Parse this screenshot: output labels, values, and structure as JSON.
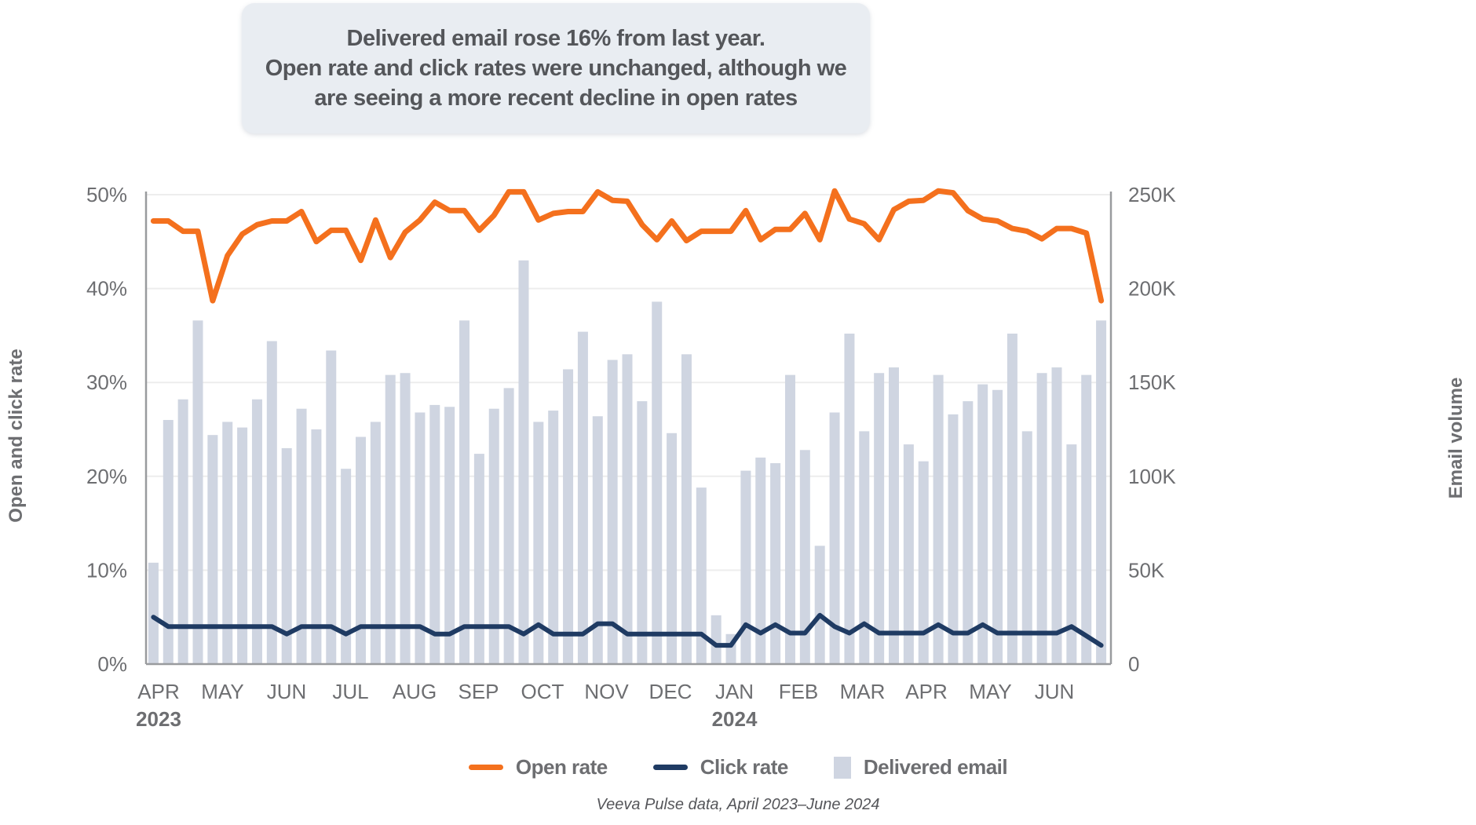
{
  "title": {
    "line1": "Delivered email rose 16% from last year.",
    "line2": "Open rate and click rates were unchanged, although we",
    "line3": "are seeing a more recent decline in open rates"
  },
  "legend": [
    {
      "key": "open_rate",
      "label": "Open rate",
      "swatch": "line",
      "color": "#F4701D"
    },
    {
      "key": "click_rate",
      "label": "Click rate",
      "swatch": "line",
      "color": "#1F3B63"
    },
    {
      "key": "delivered_email",
      "label": "Delivered email",
      "swatch": "box",
      "color": "#CFD5E1"
    }
  ],
  "source_note": "Veeva Pulse data, April 2023–June 2024",
  "chart_data": {
    "type": "combo-bar-line",
    "title": "",
    "xlabel": "",
    "ylabel_left": "Open and click rate",
    "ylabel_right": "Email volume",
    "ylim_left_pct": [
      0,
      50
    ],
    "ylim_right_volume": [
      0,
      250000
    ],
    "left_ticks_pct": [
      0,
      10,
      20,
      30,
      40,
      50
    ],
    "left_tick_labels": [
      "0%",
      "10%",
      "20%",
      "30%",
      "40%",
      "50%"
    ],
    "right_tick_labels": [
      "0",
      "50K",
      "100K",
      "150K",
      "200K",
      "250K"
    ],
    "grid": "horizontal-light",
    "legend_position": "bottom-center",
    "months": [
      "APR",
      "MAY",
      "JUN",
      "JUL",
      "AUG",
      "SEP",
      "OCT",
      "NOV",
      "DEC",
      "JAN",
      "FEB",
      "MAR",
      "APR",
      "MAY",
      "JUN"
    ],
    "year_labels": [
      {
        "month_index": 0,
        "label": "2023"
      },
      {
        "month_index": 9,
        "label": "2024"
      }
    ],
    "weeks_per_month": [
      4,
      4,
      4,
      5,
      5,
      4,
      5,
      4,
      5,
      4,
      4,
      5,
      4,
      4,
      4
    ],
    "series": [
      {
        "name": "Open rate",
        "axis": "left_pct",
        "color": "#F4701D",
        "values": [
          47.2,
          47.2,
          46.1,
          46.1,
          38.7,
          43.5,
          45.8,
          46.8,
          47.2,
          47.2,
          48.2,
          45.0,
          46.2,
          46.2,
          43.0,
          47.3,
          43.3,
          46.0,
          47.3,
          49.2,
          48.3,
          48.3,
          46.2,
          47.8,
          50.3,
          50.3,
          47.3,
          48.0,
          48.2,
          48.2,
          50.3,
          49.4,
          49.3,
          46.8,
          45.2,
          47.2,
          45.1,
          46.1,
          46.1,
          46.1,
          48.3,
          45.2,
          46.3,
          46.3,
          48.0,
          45.2,
          50.4,
          47.4,
          46.9,
          45.2,
          48.4,
          49.3,
          49.4,
          50.4,
          50.2,
          48.3,
          47.4,
          47.2,
          46.4,
          46.1,
          45.3,
          46.4,
          46.4,
          45.9,
          38.7
        ]
      },
      {
        "name": "Click rate",
        "axis": "left_pct",
        "color": "#1F3B63",
        "values": [
          5.0,
          4.0,
          4.0,
          4.0,
          4.0,
          4.0,
          4.0,
          4.0,
          4.0,
          3.2,
          4.0,
          4.0,
          4.0,
          3.2,
          4.0,
          4.0,
          4.0,
          4.0,
          4.0,
          3.2,
          3.2,
          4.0,
          4.0,
          4.0,
          4.0,
          3.2,
          4.2,
          3.2,
          3.2,
          3.2,
          4.3,
          4.3,
          3.2,
          3.2,
          3.2,
          3.2,
          3.2,
          3.2,
          2.0,
          2.0,
          4.2,
          3.3,
          4.2,
          3.3,
          3.3,
          5.2,
          4.0,
          3.3,
          4.3,
          3.3,
          3.3,
          3.3,
          3.3,
          4.2,
          3.3,
          3.3,
          4.2,
          3.3,
          3.3,
          3.3,
          3.3,
          3.3,
          4.0,
          3.0,
          2.0
        ]
      },
      {
        "name": "Delivered email",
        "axis": "right_volume_k",
        "color": "#CFD5E1",
        "values": [
          54,
          130,
          141,
          183,
          122,
          129,
          126,
          141,
          172,
          115,
          136,
          125,
          167,
          104,
          121,
          129,
          154,
          155,
          134,
          138,
          137,
          183,
          112,
          136,
          147,
          215,
          129,
          135,
          157,
          177,
          132,
          162,
          165,
          140,
          193,
          123,
          165,
          94,
          26,
          16,
          103,
          110,
          107,
          154,
          114,
          63,
          134,
          176,
          124,
          155,
          158,
          117,
          108,
          154,
          133,
          140,
          149,
          146,
          176,
          124,
          155,
          158,
          117,
          154,
          183
        ]
      }
    ]
  },
  "colors": {
    "open_rate": "#F4701D",
    "click_rate": "#1F3B63",
    "bars": "#CFD5E1",
    "grid": "#EDEDED",
    "axis_line": "#999B9E",
    "tick_text": "#6D6E71",
    "axis_title": "#6D6E71",
    "title_text": "#54565A",
    "title_bg": "#E9EDF2"
  }
}
